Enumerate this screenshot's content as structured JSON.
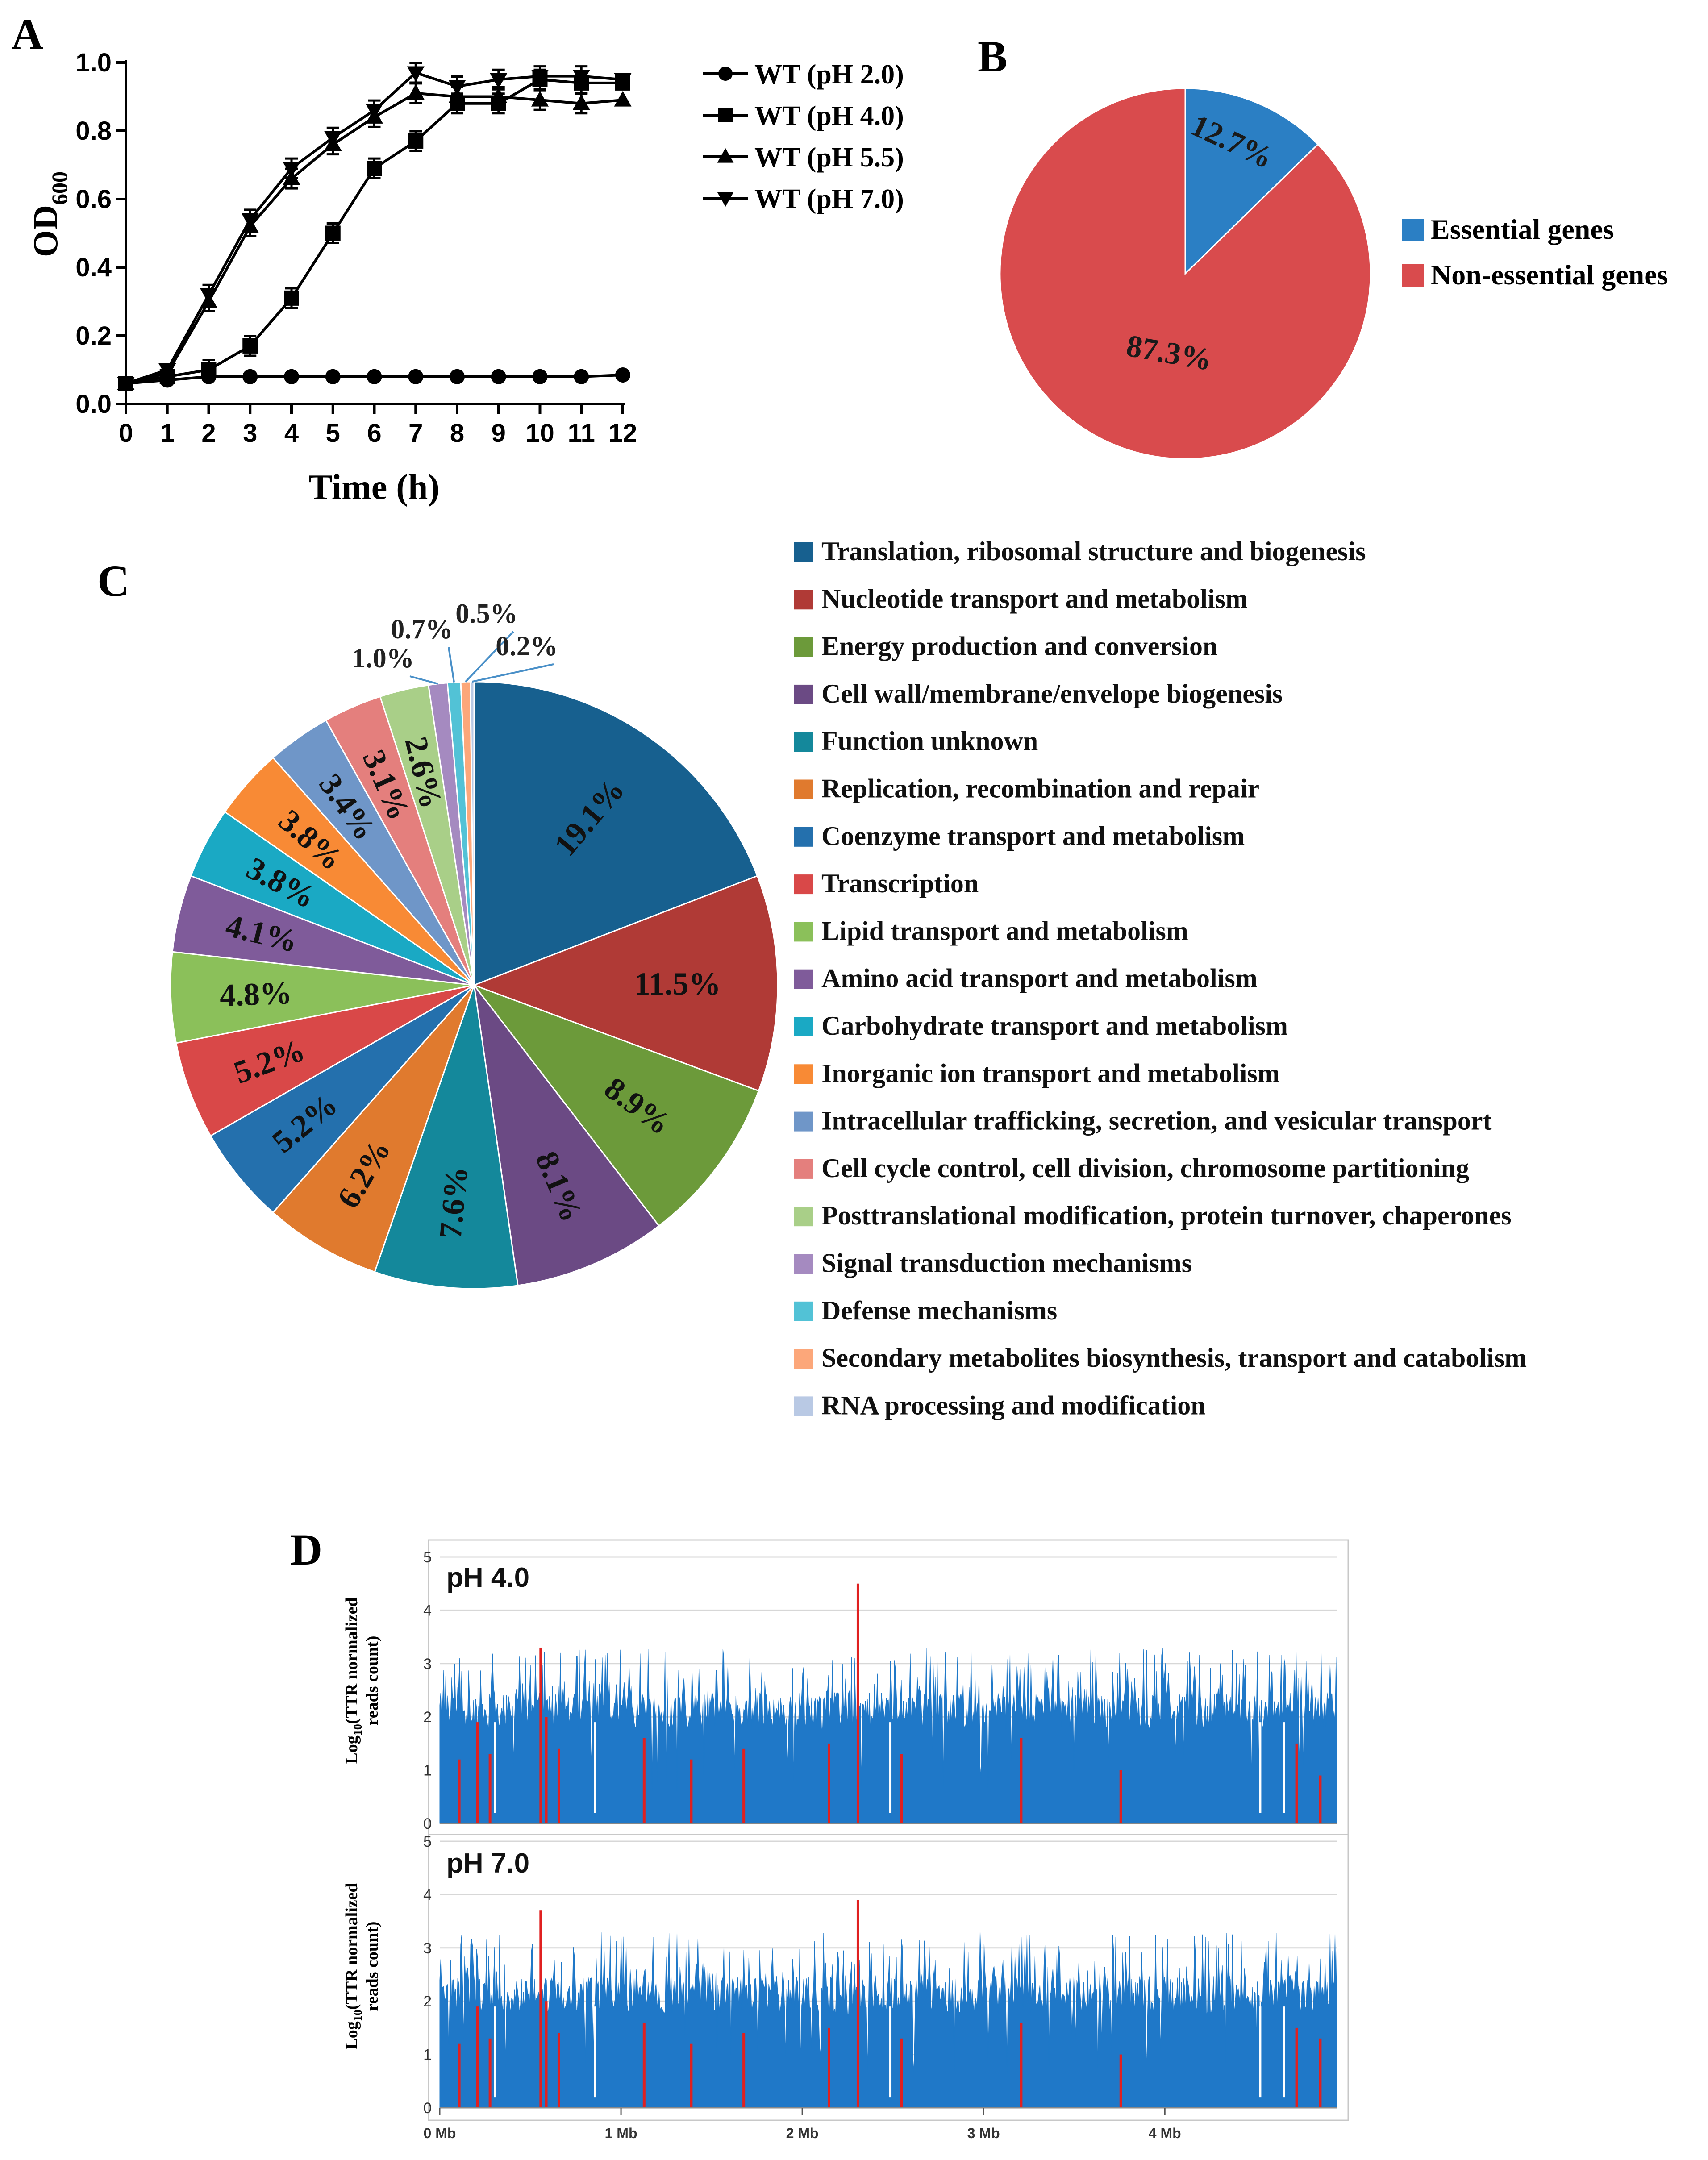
{
  "panels": {
    "a": "A",
    "b": "B",
    "c": "C",
    "d": "D"
  },
  "growth_chart": {
    "ylabel_main": "OD",
    "ylabel_sub": "600",
    "xlabel": "Time (h)"
  },
  "chart_data": [
    {
      "type": "line",
      "title": "",
      "xlabel": "Time (h)",
      "ylabel": "OD600",
      "xlim": [
        0,
        12
      ],
      "ylim": [
        0,
        1.0
      ],
      "x": [
        0,
        1,
        2,
        3,
        4,
        5,
        6,
        7,
        8,
        9,
        10,
        11,
        12
      ],
      "xticks": [
        "0",
        "1",
        "2",
        "3",
        "4",
        "5",
        "6",
        "7",
        "8",
        "9",
        "10",
        "11",
        "12"
      ],
      "yticks": [
        "0.0",
        "0.2",
        "0.4",
        "0.6",
        "0.8",
        "1.0"
      ],
      "series": [
        {
          "name": "WT (pH 2.0)",
          "marker": "circle",
          "values": [
            0.06,
            0.07,
            0.08,
            0.08,
            0.08,
            0.08,
            0.08,
            0.08,
            0.08,
            0.08,
            0.08,
            0.08,
            0.085
          ]
        },
        {
          "name": "WT (pH 4.0)",
          "marker": "square",
          "values": [
            0.06,
            0.08,
            0.1,
            0.17,
            0.31,
            0.5,
            0.69,
            0.77,
            0.88,
            0.88,
            0.95,
            0.94,
            0.94
          ]
        },
        {
          "name": "WT (pH 5.5)",
          "marker": "triangle-up",
          "values": [
            0.06,
            0.09,
            0.3,
            0.52,
            0.66,
            0.76,
            0.84,
            0.91,
            0.9,
            0.9,
            0.89,
            0.88,
            0.89
          ]
        },
        {
          "name": "WT (pH 7.0)",
          "marker": "triangle-down",
          "values": [
            0.06,
            0.1,
            0.32,
            0.54,
            0.69,
            0.78,
            0.86,
            0.97,
            0.93,
            0.95,
            0.96,
            0.96,
            0.95
          ]
        }
      ]
    },
    {
      "type": "pie",
      "title": "",
      "labels": [
        "Essential genes",
        "Non-essential genes"
      ],
      "values": [
        12.7,
        87.3
      ],
      "value_labels": [
        "12.7%",
        "87.3%"
      ],
      "colors": [
        "#2b7fc4",
        "#d94b4d"
      ]
    },
    {
      "type": "pie",
      "title": "",
      "labels": [
        "Translation, ribosomal structure and biogenesis",
        "Nucleotide transport and metabolism",
        "Energy production and conversion",
        "Cell wall/membrane/envelope biogenesis",
        "Function unknown",
        "Replication, recombination and repair",
        "Coenzyme transport and metabolism",
        "Transcription",
        "Lipid transport and metabolism",
        "Amino acid transport and metabolism",
        "Carbohydrate transport and metabolism",
        "Inorganic ion transport and metabolism",
        "Intracellular trafficking, secretion, and vesicular transport",
        "Cell cycle control, cell division, chromosome partitioning",
        "Posttranslational modification, protein turnover, chaperones",
        "Signal transduction mechanisms",
        "Defense mechanisms",
        "Secondary metabolites biosynthesis, transport and catabolism",
        "RNA processing and modification"
      ],
      "values": [
        19.1,
        11.5,
        8.9,
        8.1,
        7.6,
        6.2,
        5.2,
        5.2,
        4.8,
        4.1,
        3.8,
        3.8,
        3.4,
        3.1,
        2.6,
        1.0,
        0.7,
        0.5,
        0.2
      ],
      "value_labels": [
        "19.1%",
        "11.5%",
        "8.9%",
        "8.1%",
        "7.6%",
        "6.2%",
        "5.2%",
        "5.2%",
        "4.8%",
        "4.1%",
        "3.8%",
        "3.8%",
        "3.4%",
        "3.1%",
        "2.6%",
        "1.0%",
        "0.7%",
        "0.5%",
        "0.2%"
      ],
      "colors": [
        "#17608f",
        "#b03a36",
        "#6c9a3a",
        "#6b4a84",
        "#14889b",
        "#e07a2e",
        "#2470ad",
        "#d94848",
        "#8bc05a",
        "#7f5b9a",
        "#1aa9c4",
        "#f88a35",
        "#6f96c8",
        "#e47f7d",
        "#a9cf88",
        "#a58ac0",
        "#52c2d6",
        "#fca77a",
        "#b9c9e4"
      ]
    },
    {
      "type": "bar",
      "title": "pH 4.0",
      "ylabel": "Log10(TTR normalized reads count)",
      "ylim": [
        0,
        5
      ],
      "yticks": [
        "0",
        "1",
        "2",
        "3",
        "4",
        "5"
      ],
      "xticks": [
        "0 Mb",
        "1 Mb",
        "2 Mb",
        "3 Mb",
        "4 Mb"
      ],
      "series": [
        {
          "name": "genome coverage",
          "color": "#1f78c8"
        },
        {
          "name": "essential loci",
          "color": "#e02020"
        }
      ],
      "highlight_positions_mb": [
        0.1,
        0.2,
        0.27,
        0.55,
        0.58,
        0.65,
        1.12,
        1.38,
        1.67,
        2.14,
        2.3,
        2.54,
        3.2,
        3.75,
        4.72,
        4.85
      ],
      "highlight_values": [
        1.2,
        1.9,
        1.3,
        3.3,
        2.0,
        1.4,
        1.6,
        1.2,
        1.4,
        1.5,
        4.5,
        1.3,
        1.6,
        1.0,
        1.5,
        0.9
      ],
      "profile_profile_note": ""
    },
    {
      "type": "bar",
      "title": "pH 7.0",
      "ylabel": "Log10(TTR normalized reads count)",
      "ylim": [
        0,
        5
      ],
      "yticks": [
        "0",
        "1",
        "2",
        "3",
        "4",
        "5"
      ],
      "xticks": [
        "0 Mb",
        "1 Mb",
        "2 Mb",
        "3 Mb",
        "4 Mb"
      ],
      "series": [
        {
          "name": "genome coverage",
          "color": "#1f78c8"
        },
        {
          "name": "essential loci",
          "color": "#e02020"
        }
      ],
      "highlight_positions_mb": [
        0.1,
        0.2,
        0.27,
        0.55,
        0.58,
        0.65,
        1.12,
        1.38,
        1.67,
        2.14,
        2.3,
        2.54,
        3.2,
        3.75,
        4.72,
        4.85
      ],
      "highlight_values": [
        1.2,
        1.9,
        1.3,
        3.7,
        2.0,
        1.4,
        1.6,
        1.2,
        1.4,
        1.5,
        3.9,
        1.3,
        1.6,
        1.0,
        1.5,
        1.3
      ]
    }
  ],
  "axis_label_d": {
    "line1_pre": "Log",
    "line1_sub": "10",
    "line1_post": "(TTR normalized",
    "line2": "reads count)"
  },
  "colors": {
    "coverage": "#1f78c8",
    "highlight": "#e02020",
    "axis": "#000000",
    "frame": "#c8c8c8"
  }
}
